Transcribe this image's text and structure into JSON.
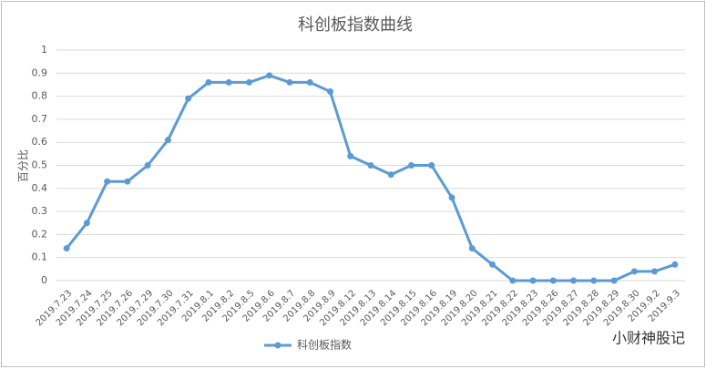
{
  "chart_data": {
    "type": "line",
    "title": "科创板指数曲线",
    "y_label": "百分比",
    "categories": [
      "2019.7.23",
      "2019.7.24",
      "2019.7.25",
      "2019.7.26",
      "2019.7.29",
      "2019.7.30",
      "2019.7.31",
      "2019.8.1",
      "2019.8.2",
      "2019.8.5",
      "2019.8.6",
      "2019.8.7",
      "2019.8.8",
      "2019.8.9",
      "2019.8.12",
      "2019.8.13",
      "2019.8.14",
      "2019.8.15",
      "2019.8.16",
      "2019.8.19",
      "2019.8.20",
      "2019.8.21",
      "2019.8.22",
      "2019.8.23",
      "2019.8.26",
      "2019.8.27",
      "2019.8.28",
      "2019.8.29",
      "2019.8.30",
      "2019.9.2",
      "2019.9.3"
    ],
    "series": [
      {
        "name": "科创板指数",
        "color": "#5b9bd5",
        "values": [
          0.14,
          0.25,
          0.43,
          0.43,
          0.5,
          0.61,
          0.79,
          0.86,
          0.86,
          0.86,
          0.89,
          0.86,
          0.86,
          0.82,
          0.54,
          0.5,
          0.46,
          0.5,
          0.5,
          0.36,
          0.14,
          0.07,
          0,
          0,
          0,
          0,
          0,
          0,
          0.04,
          0.04,
          0.07
        ]
      }
    ],
    "ylim": [
      0,
      1
    ],
    "yticks": [
      0,
      0.1,
      0.2,
      0.3,
      0.4,
      0.5,
      0.6,
      0.7,
      0.8,
      0.9,
      1
    ],
    "grid": true,
    "legend": "bottom",
    "watermark": "小财神股记"
  }
}
